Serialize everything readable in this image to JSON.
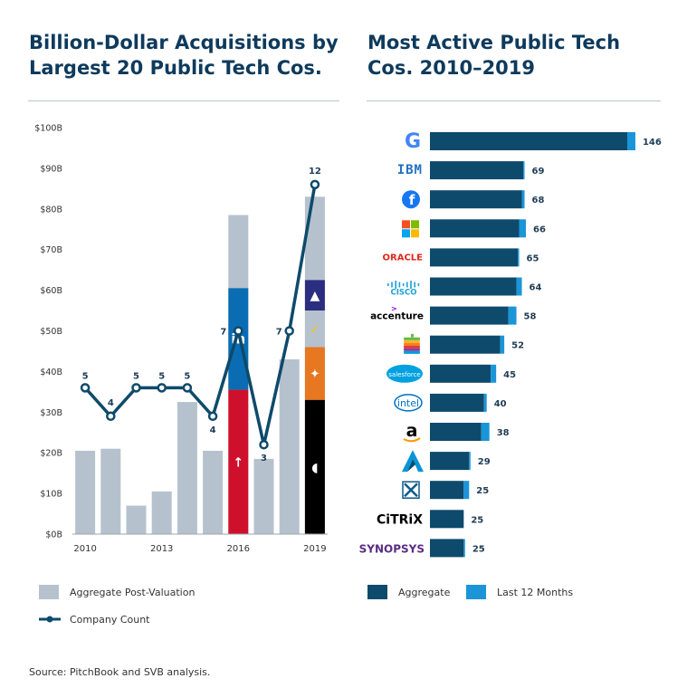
{
  "left_title": "Billion-Dollar Acquisitions by Largest 20 Public Tech Cos.",
  "right_title": "Most Active Public Tech Cos. 2010–2019",
  "source": "Source: PitchBook and SVB analysis.",
  "colors": {
    "grey": "#b5c2ce",
    "navy": "#0e4a6b",
    "blue": "#1a95d8",
    "linkedin": "#0a6db3",
    "red": "#cf102d",
    "orange": "#e87722",
    "black": "#000000",
    "purple": "#2b2e80",
    "yellow_check": "#f2c21b"
  },
  "legend_left": {
    "aggregate_post_valuation": "Aggregate Post-Valuation",
    "company_count": "Company Count"
  },
  "legend_right": {
    "aggregate": "Aggregate",
    "last_12_months": "Last 12 Months"
  },
  "chart_data": [
    {
      "type": "bar",
      "title": "Billion-Dollar Acquisitions by Largest 20 Public Tech Cos.",
      "y_axis": {
        "ticks": [
          "$0B",
          "$10B",
          "$20B",
          "$30B",
          "$40B",
          "$50B",
          "$60B",
          "$70B",
          "$80B",
          "$90B",
          "$100B"
        ],
        "range": [
          0,
          100
        ]
      },
      "x_labels": [
        "2010",
        "",
        "",
        "2013",
        "",
        "",
        "2016",
        "",
        "",
        "2019"
      ],
      "categories": [
        "2010",
        "2011",
        "2012",
        "2013",
        "2014",
        "2015",
        "2016",
        "2017",
        "2018",
        "2019"
      ],
      "series": [
        {
          "name": "Aggregate Post-Valuation",
          "values": [
            20.5,
            21,
            7,
            10.5,
            32.5,
            20.5,
            78.5,
            18.5,
            43,
            83
          ]
        },
        {
          "name": "Company Count",
          "values": [
            5,
            4,
            5,
            5,
            5,
            4,
            7,
            3,
            7,
            12
          ]
        }
      ],
      "count_line_positions": [
        36,
        29,
        36,
        36,
        36,
        29,
        50,
        22,
        50,
        86
      ],
      "highlight_segments": [
        {
          "year": "2016",
          "company": "LinkedIn",
          "from": 60.5,
          "to": 35.5,
          "color_key": "linkedin",
          "icon": "linkedin-icon",
          "mark": "in"
        },
        {
          "year": "2016",
          "company": "Altera",
          "from": 35.5,
          "to": 0,
          "color_key": "red",
          "icon": "altera-icon",
          "mark": "↑"
        },
        {
          "year": "2019",
          "company": "Gemalto",
          "from": 62.5,
          "to": 55,
          "color_key": "purple",
          "icon": "gemalto-icon",
          "mark": "▲"
        },
        {
          "year": "2019",
          "company": "Symantec",
          "from": 55,
          "to": 46,
          "color_key": "grey",
          "icon": "symantec-check-icon",
          "mark": "✓"
        },
        {
          "year": "2019",
          "company": "Tableau",
          "from": 46,
          "to": 33,
          "color_key": "orange",
          "icon": "tableau-icon",
          "mark": "✦"
        },
        {
          "year": "2019",
          "company": "Red Hat",
          "from": 33,
          "to": 0,
          "color_key": "black",
          "icon": "redhat-icon",
          "mark": "◖"
        }
      ]
    },
    {
      "type": "bar",
      "title": "Most Active Public Tech Cos. 2010–2019",
      "orientation": "horizontal",
      "categories": [
        "Google",
        "IBM",
        "Facebook",
        "Microsoft",
        "Oracle",
        "Cisco",
        "Accenture",
        "Apple",
        "Salesforce",
        "Intel",
        "Amazon",
        "Autodesk",
        "Xilinx",
        "Citrix",
        "Synopsys"
      ],
      "series": [
        {
          "name": "Aggregate",
          "values": [
            146,
            69,
            68,
            66,
            65,
            64,
            58,
            52,
            45,
            40,
            38,
            29,
            25,
            25,
            25
          ]
        },
        {
          "name": "Last 12 Months",
          "values": [
            6,
            1,
            2,
            5,
            1,
            4,
            6,
            3,
            4,
            2,
            6,
            1,
            4,
            0,
            1
          ]
        }
      ],
      "value_labels": [
        "146",
        "69",
        "68",
        "66",
        "65",
        "64",
        "58",
        "52",
        "45",
        "40",
        "38",
        "29",
        "25",
        "25",
        "25"
      ],
      "logos": [
        {
          "name": "google-icon",
          "text": "G"
        },
        {
          "name": "ibm-icon",
          "text": "IBM"
        },
        {
          "name": "facebook-icon",
          "text": "f"
        },
        {
          "name": "microsoft-icon",
          "text": ""
        },
        {
          "name": "oracle-icon",
          "text": "ORACLE"
        },
        {
          "name": "cisco-icon",
          "text": "CISCO"
        },
        {
          "name": "accenture-icon",
          "text": "accenture"
        },
        {
          "name": "apple-icon",
          "text": ""
        },
        {
          "name": "salesforce-icon",
          "text": "salesforce"
        },
        {
          "name": "intel-icon",
          "text": "intel"
        },
        {
          "name": "amazon-icon",
          "text": "a"
        },
        {
          "name": "autodesk-icon",
          "text": ""
        },
        {
          "name": "xilinx-icon",
          "text": ""
        },
        {
          "name": "citrix-icon",
          "text": "CiTRiX"
        },
        {
          "name": "synopsys-icon",
          "text": "SYNOPSYS"
        }
      ]
    }
  ]
}
